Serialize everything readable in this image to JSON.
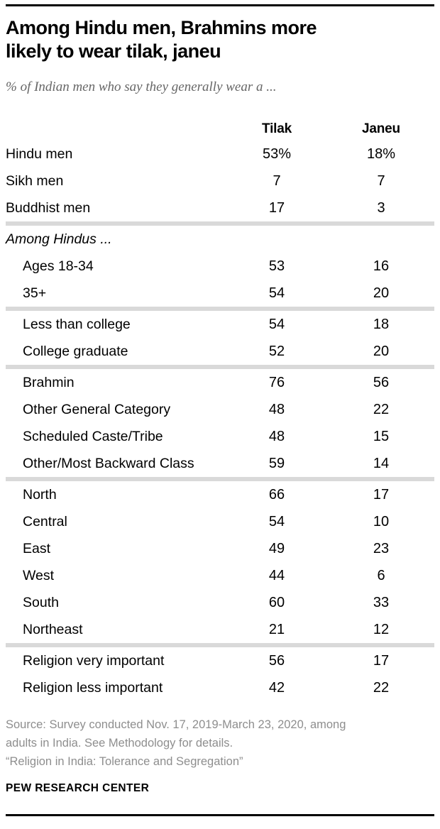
{
  "colors": {
    "text": "#000000",
    "subtitle_gray": "#666666",
    "source_gray": "#8e8e8e",
    "divider_gray": "#d9d9d9",
    "rule_black": "#000000"
  },
  "header": {
    "title_lines": [
      "Among Hindu men, Brahmins more",
      "likely to wear tilak, janeu"
    ]
  },
  "chart_data": {
    "type": "table",
    "title": "Among Hindu men, Brahmins more likely to wear tilak, janeu",
    "subtitle": "% of Indian men who say they generally wear a ...",
    "columns": [
      "Tilak",
      "Janeu"
    ],
    "groups": [
      {
        "label": null,
        "rows": [
          [
            "Hindu men",
            "53%",
            "18%"
          ],
          [
            "Sikh men",
            "7",
            "7"
          ],
          [
            "Buddhist men",
            "17",
            "3"
          ]
        ]
      },
      {
        "label": "Among Hindus ...",
        "rows": [
          [
            "Ages 18-34",
            "53",
            "16"
          ],
          [
            "35+",
            "54",
            "20"
          ]
        ]
      },
      {
        "label": null,
        "rows": [
          [
            "Less than college",
            "54",
            "18"
          ],
          [
            "College graduate",
            "52",
            "20"
          ]
        ]
      },
      {
        "label": null,
        "rows": [
          [
            "Brahmin",
            "76",
            "56"
          ],
          [
            "Other General Category",
            "48",
            "22"
          ],
          [
            "Scheduled Caste/Tribe",
            "48",
            "15"
          ],
          [
            "Other/Most Backward Class",
            "59",
            "14"
          ]
        ]
      },
      {
        "label": null,
        "rows": [
          [
            "North",
            "66",
            "17"
          ],
          [
            "Central",
            "54",
            "10"
          ],
          [
            "East",
            "49",
            "23"
          ],
          [
            "West",
            "44",
            "6"
          ],
          [
            "South",
            "60",
            "33"
          ],
          [
            "Northeast",
            "21",
            "12"
          ]
        ]
      },
      {
        "label": null,
        "rows": [
          [
            "Religion very important",
            "56",
            "17"
          ],
          [
            "Religion less important",
            "42",
            "22"
          ]
        ]
      }
    ]
  },
  "footer": {
    "source_lines": [
      "Source: Survey conducted Nov. 17, 2019-March 23, 2020, among",
      "adults in India. See Methodology for details."
    ],
    "quote": "“Religion in India: Tolerance and Segregation”",
    "brand": "PEW RESEARCH CENTER"
  }
}
